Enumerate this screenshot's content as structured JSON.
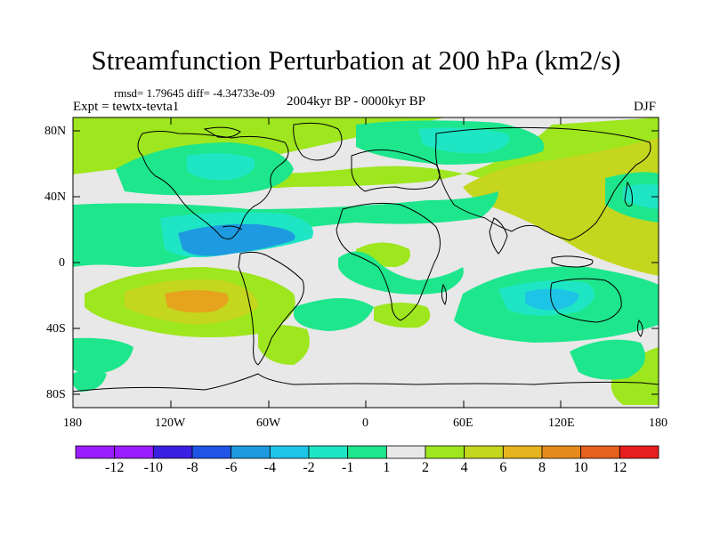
{
  "header": {
    "title": "Streamfunction Perturbation at 200 hPa (km2/s)",
    "stats": "rmsd= 1.79645 diff= -4.34733e-09",
    "experiment": "Expt = tewtx-tevta1",
    "period": "2004kyr BP - 0000kyr BP",
    "season": "DJF"
  },
  "axes": {
    "lat_labels": [
      "80N",
      "40N",
      "0",
      "40S",
      "80S"
    ],
    "lon_labels": [
      "180",
      "120W",
      "60W",
      "0",
      "60E",
      "120E",
      "180"
    ]
  },
  "colorbar": {
    "labels": [
      "-12",
      "-10",
      "-8",
      "-6",
      "-4",
      "-2",
      "-1",
      "1",
      "2",
      "4",
      "6",
      "8",
      "10",
      "12"
    ],
    "colors": [
      "#9a1eff",
      "#3a20e0",
      "#1e55e6",
      "#1e9be0",
      "#1ec4e6",
      "#1ee6c4",
      "#1ee68c",
      "#e8e8e8",
      "#9ee61e",
      "#c4d61e",
      "#e6b41e",
      "#e68a1e",
      "#e6601e",
      "#e61e1e"
    ]
  },
  "fields": {
    "colors": {
      "pos1": "#9ee61e",
      "pos2": "#c4d61e",
      "pos3": "#e6a41e",
      "neg1": "#1ee68c",
      "neg2": "#1ee6c4",
      "neg3": "#1ec4e6",
      "neg4": "#1e9be0",
      "background": "#e8e8e8",
      "coast": "#000000"
    }
  }
}
